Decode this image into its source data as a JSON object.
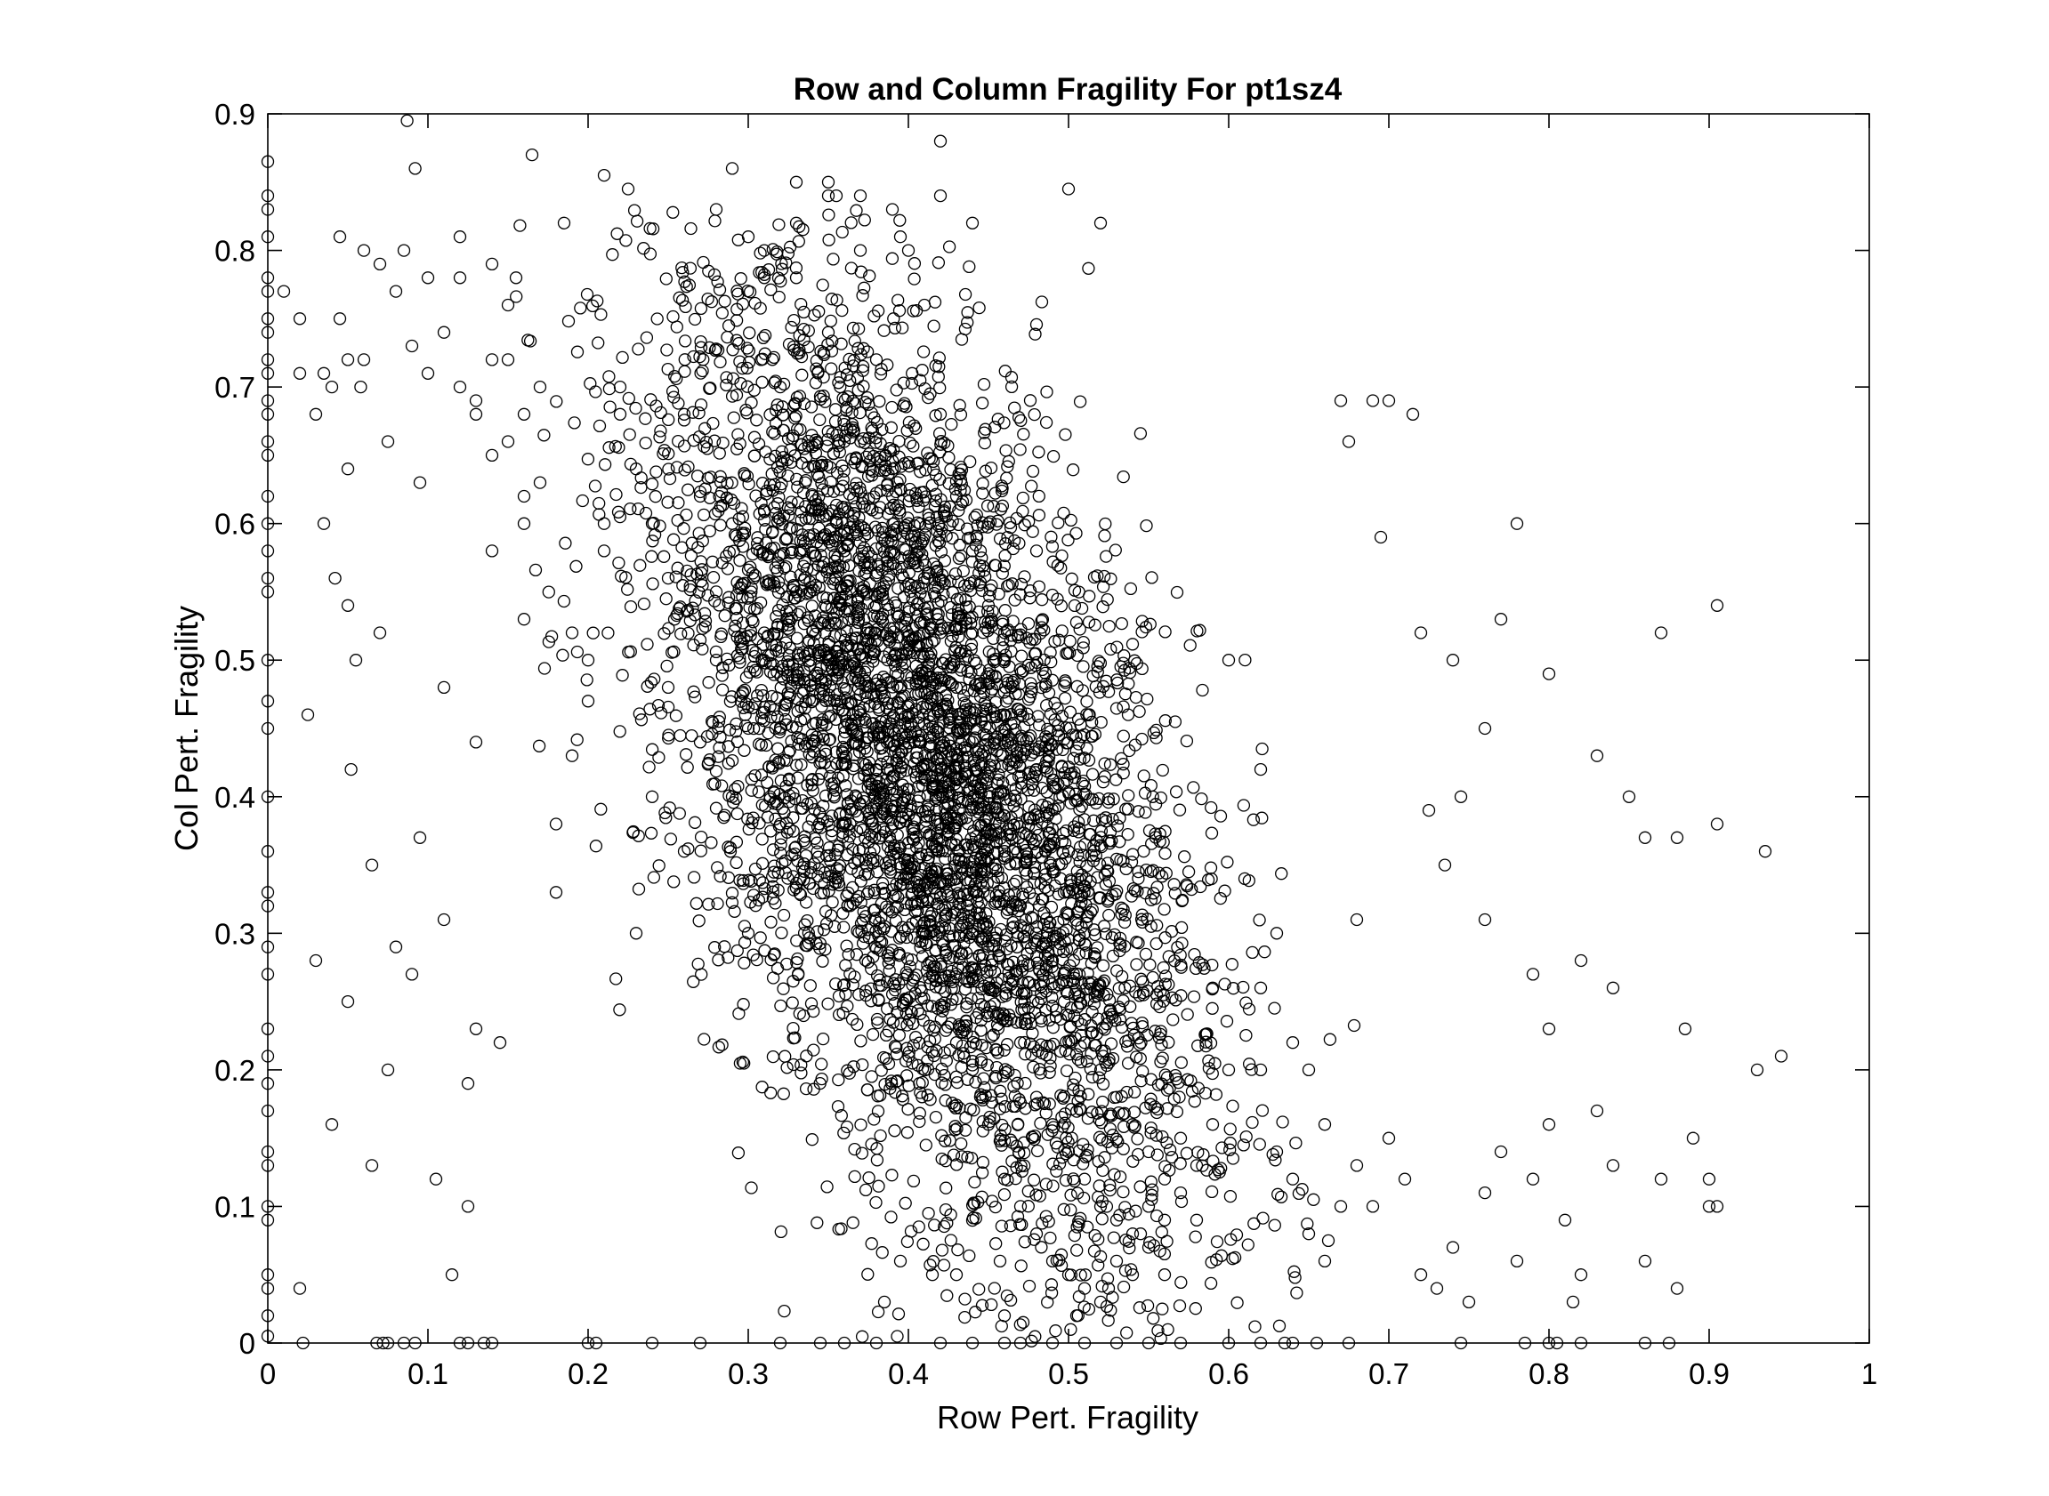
{
  "chart_data": {
    "type": "scatter",
    "title": "Row and Column Fragility For pt1sz4",
    "xlabel": "Row Pert. Fragility",
    "ylabel": "Col Pert. Fragility",
    "xlim": [
      0,
      1
    ],
    "ylim": [
      0,
      0.9
    ],
    "xticks": [
      "0",
      "0.1",
      "0.2",
      "0.3",
      "0.4",
      "0.5",
      "0.6",
      "0.7",
      "0.8",
      "0.9",
      "1"
    ],
    "yticks": [
      "0",
      "0.1",
      "0.2",
      "0.3",
      "0.4",
      "0.5",
      "0.6",
      "0.7",
      "0.8",
      "0.9"
    ],
    "grid": false,
    "legend": false,
    "marker": "open-circle",
    "marker_color": "#000000",
    "series": [
      {
        "x": [
          0.0,
          0.0,
          0.0,
          0.0,
          0.0,
          0.0,
          0.0,
          0.0,
          0.0,
          0.0,
          0.0,
          0.0,
          0.0,
          0.0,
          0.0,
          0.0,
          0.0,
          0.0,
          0.0,
          0.0,
          0.0,
          0.0,
          0.0,
          0.0,
          0.0,
          0.0,
          0.0,
          0.0,
          0.0,
          0.0,
          0.0,
          0.0,
          0.0,
          0.0,
          0.0,
          0.0,
          0.0,
          0.0,
          0.0,
          0.0,
          0.022,
          0.068,
          0.072,
          0.075,
          0.085,
          0.092,
          0.12,
          0.125,
          0.135,
          0.14,
          0.2,
          0.205,
          0.24,
          0.27,
          0.32,
          0.345,
          0.36,
          0.38,
          0.42,
          0.44,
          0.46,
          0.47,
          0.49,
          0.51,
          0.53,
          0.55,
          0.57,
          0.6,
          0.62,
          0.635,
          0.64,
          0.655,
          0.675,
          0.745,
          0.785,
          0.8,
          0.805,
          0.82,
          0.86,
          0.875,
          0.087,
          0.092,
          0.165,
          0.21,
          0.29,
          0.225,
          0.42,
          0.5,
          0.045,
          0.06,
          0.07,
          0.085,
          0.1,
          0.12,
          0.14,
          0.155,
          0.185,
          0.045,
          0.08,
          0.11,
          0.05,
          0.058,
          0.035,
          0.02,
          0.01,
          0.02,
          0.03,
          0.04,
          0.06,
          0.09,
          0.1,
          0.12,
          0.13,
          0.15,
          0.16,
          0.05,
          0.075,
          0.095,
          0.14,
          0.16,
          0.035,
          0.042,
          0.055,
          0.07,
          0.05,
          0.025,
          0.052,
          0.065,
          0.095,
          0.11,
          0.08,
          0.03,
          0.05,
          0.09,
          0.13,
          0.075,
          0.125,
          0.145,
          0.04,
          0.065,
          0.105,
          0.125,
          0.115,
          0.02,
          0.33,
          0.32,
          0.35,
          0.37,
          0.34,
          0.36,
          0.38,
          0.33,
          0.36,
          0.39,
          0.41,
          0.35,
          0.38,
          0.4,
          0.42,
          0.37,
          0.39,
          0.41,
          0.43,
          0.38,
          0.4,
          0.42,
          0.44,
          0.39,
          0.41,
          0.43,
          0.45,
          0.4,
          0.42,
          0.44,
          0.46,
          0.41,
          0.43,
          0.45,
          0.47,
          0.42,
          0.44,
          0.46,
          0.48,
          0.43,
          0.45,
          0.47,
          0.44,
          0.46,
          0.48,
          0.5,
          0.45,
          0.47,
          0.49,
          0.46,
          0.48,
          0.5,
          0.47,
          0.49,
          0.51,
          0.48,
          0.5,
          0.52,
          0.49,
          0.51,
          0.53,
          0.5,
          0.52,
          0.54,
          0.51,
          0.53,
          0.55,
          0.52,
          0.54,
          0.56,
          0.53,
          0.55,
          0.57,
          0.54,
          0.56,
          0.58,
          0.55,
          0.57,
          0.59,
          0.6,
          0.29,
          0.31,
          0.3,
          0.32,
          0.28,
          0.3,
          0.27,
          0.29,
          0.26,
          0.28,
          0.25,
          0.27,
          0.24,
          0.26,
          0.23,
          0.25,
          0.22,
          0.24,
          0.21,
          0.23,
          0.2,
          0.22,
          0.19,
          0.21,
          0.18,
          0.2,
          0.17,
          0.19,
          0.16,
          0.18,
          0.15,
          0.17,
          0.14,
          0.16,
          0.13,
          0.15,
          0.12,
          0.14,
          0.11,
          0.13,
          0.6,
          0.62,
          0.61,
          0.63,
          0.64,
          0.62,
          0.65,
          0.63,
          0.66,
          0.64,
          0.67,
          0.65,
          0.68,
          0.66,
          0.69,
          0.7,
          0.72,
          0.71,
          0.73,
          0.74,
          0.75,
          0.76,
          0.77,
          0.78,
          0.79,
          0.8,
          0.81,
          0.82,
          0.83,
          0.84,
          0.86,
          0.87,
          0.88,
          0.89,
          0.9,
          0.905,
          0.93,
          0.935,
          0.945,
          0.815,
          0.78,
          0.77,
          0.8,
          0.76,
          0.87,
          0.905,
          0.83,
          0.85,
          0.88,
          0.72,
          0.74,
          0.695,
          0.715,
          0.675,
          0.69,
          0.735,
          0.745,
          0.76,
          0.79,
          0.8,
          0.82,
          0.84,
          0.86,
          0.885,
          0.9,
          0.905,
          0.68,
          0.67,
          0.7,
          0.725,
          0.42,
          0.33,
          0.52,
          0.355,
          0.395,
          0.28,
          0.44,
          0.4,
          0.31,
          0.35,
          0.45,
          0.48,
          0.415,
          0.385,
          0.395,
          0.43,
          0.46,
          0.505,
          0.525,
          0.56,
          0.545,
          0.58,
          0.59,
          0.62,
          0.35,
          0.37,
          0.39,
          0.33,
          0.31,
          0.3
        ],
        "y": [
          0.865,
          0.84,
          0.83,
          0.81,
          0.78,
          0.77,
          0.75,
          0.74,
          0.72,
          0.71,
          0.69,
          0.68,
          0.66,
          0.65,
          0.62,
          0.6,
          0.58,
          0.56,
          0.55,
          0.5,
          0.47,
          0.45,
          0.4,
          0.36,
          0.33,
          0.32,
          0.29,
          0.27,
          0.23,
          0.21,
          0.19,
          0.17,
          0.14,
          0.13,
          0.1,
          0.09,
          0.05,
          0.04,
          0.02,
          0.005,
          0.0,
          0.0,
          0.0,
          0.0,
          0.0,
          0.0,
          0.0,
          0.0,
          0.0,
          0.0,
          0.0,
          0.0,
          0.0,
          0.0,
          0.0,
          0.0,
          0.0,
          0.0,
          0.0,
          0.0,
          0.0,
          0.0,
          0.0,
          0.0,
          0.0,
          0.0,
          0.0,
          0.0,
          0.0,
          0.0,
          0.0,
          0.0,
          0.0,
          0.0,
          0.0,
          0.0,
          0.0,
          0.0,
          0.0,
          0.0,
          0.895,
          0.86,
          0.87,
          0.855,
          0.86,
          0.845,
          0.88,
          0.845,
          0.81,
          0.8,
          0.79,
          0.8,
          0.78,
          0.81,
          0.79,
          0.78,
          0.82,
          0.75,
          0.77,
          0.74,
          0.72,
          0.7,
          0.71,
          0.75,
          0.77,
          0.71,
          0.68,
          0.7,
          0.72,
          0.73,
          0.71,
          0.7,
          0.69,
          0.72,
          0.68,
          0.64,
          0.66,
          0.63,
          0.65,
          0.62,
          0.6,
          0.56,
          0.5,
          0.52,
          0.54,
          0.46,
          0.42,
          0.35,
          0.37,
          0.31,
          0.29,
          0.28,
          0.25,
          0.27,
          0.23,
          0.2,
          0.19,
          0.22,
          0.16,
          0.13,
          0.12,
          0.1,
          0.05,
          0.04,
          0.78,
          0.7,
          0.74,
          0.8,
          0.62,
          0.66,
          0.72,
          0.55,
          0.58,
          0.64,
          0.76,
          0.5,
          0.54,
          0.6,
          0.68,
          0.46,
          0.5,
          0.56,
          0.62,
          0.42,
          0.46,
          0.52,
          0.58,
          0.38,
          0.42,
          0.48,
          0.54,
          0.34,
          0.38,
          0.44,
          0.5,
          0.3,
          0.34,
          0.4,
          0.46,
          0.26,
          0.3,
          0.36,
          0.42,
          0.22,
          0.26,
          0.32,
          0.2,
          0.24,
          0.3,
          0.36,
          0.16,
          0.22,
          0.28,
          0.12,
          0.18,
          0.24,
          0.1,
          0.16,
          0.22,
          0.08,
          0.14,
          0.2,
          0.06,
          0.12,
          0.18,
          0.05,
          0.1,
          0.16,
          0.04,
          0.09,
          0.14,
          0.03,
          0.08,
          0.12,
          0.06,
          0.1,
          0.15,
          0.05,
          0.09,
          0.13,
          0.07,
          0.11,
          0.16,
          0.2,
          0.6,
          0.52,
          0.45,
          0.38,
          0.55,
          0.3,
          0.62,
          0.4,
          0.68,
          0.5,
          0.56,
          0.44,
          0.6,
          0.36,
          0.64,
          0.48,
          0.7,
          0.4,
          0.6,
          0.3,
          0.5,
          0.68,
          0.43,
          0.58,
          0.33,
          0.47,
          0.7,
          0.52,
          0.6,
          0.38,
          0.76,
          0.63,
          0.72,
          0.53,
          0.44,
          0.66,
          0.78,
          0.58,
          0.48,
          0.68,
          0.5,
          0.42,
          0.34,
          0.3,
          0.22,
          0.26,
          0.2,
          0.14,
          0.16,
          0.12,
          0.1,
          0.08,
          0.13,
          0.06,
          0.1,
          0.15,
          0.05,
          0.12,
          0.04,
          0.07,
          0.03,
          0.11,
          0.14,
          0.06,
          0.12,
          0.16,
          0.09,
          0.05,
          0.17,
          0.13,
          0.06,
          0.12,
          0.04,
          0.15,
          0.12,
          0.1,
          0.2,
          0.36,
          0.21,
          0.03,
          0.6,
          0.53,
          0.49,
          0.45,
          0.52,
          0.54,
          0.43,
          0.4,
          0.37,
          0.52,
          0.5,
          0.59,
          0.68,
          0.66,
          0.69,
          0.35,
          0.4,
          0.31,
          0.27,
          0.23,
          0.28,
          0.26,
          0.37,
          0.23,
          0.1,
          0.38,
          0.31,
          0.69,
          0.69,
          0.39,
          0.84,
          0.85,
          0.82,
          0.84,
          0.81,
          0.83,
          0.82,
          0.8,
          0.78,
          0.84,
          0.6,
          0.58,
          0.05,
          0.03,
          0.06,
          0.05,
          0.02,
          0.02,
          0.04,
          0.05,
          0.08,
          0.09,
          0.26,
          0.2,
          0.85,
          0.84,
          0.83,
          0.82,
          0.8,
          0.81
        ]
      }
    ],
    "cloud": {
      "count": 5200,
      "x_mean": 0.41,
      "x_sd": 0.085,
      "y_mean": 0.42,
      "y_sd": 0.175,
      "correlation": -0.55
    }
  }
}
